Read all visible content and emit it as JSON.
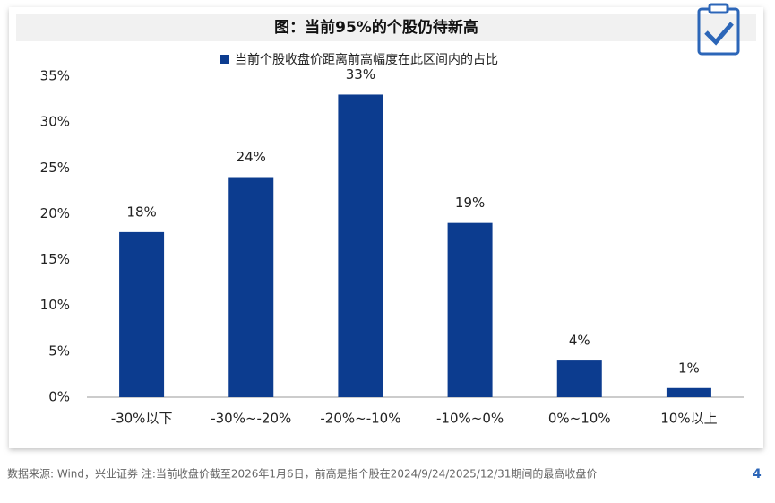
{
  "chart_data": {
    "type": "bar",
    "title": "图：当前95%的个股仍待新高",
    "categories": [
      "-30%以下",
      "-30%~-20%",
      "-20%~-10%",
      "-10%~0%",
      "0%~10%",
      "10%以上"
    ],
    "series": [
      {
        "name": "当前个股收盘价距离前高幅度在此区间内的占比",
        "color": "#0c3c8f",
        "values": [
          18,
          24,
          33,
          19,
          4,
          1
        ],
        "value_labels": [
          "18%",
          "24%",
          "33%",
          "19%",
          "4%",
          "1%"
        ]
      }
    ],
    "ylim": [
      0,
      35
    ],
    "yticks": [
      {
        "value": 0,
        "label": "0%"
      },
      {
        "value": 5,
        "label": "5%"
      },
      {
        "value": 10,
        "label": "10%"
      },
      {
        "value": 15,
        "label": "15%"
      },
      {
        "value": 20,
        "label": "20%"
      },
      {
        "value": 25,
        "label": "25%"
      },
      {
        "value": 30,
        "label": "30%"
      },
      {
        "value": 35,
        "label": "35%"
      }
    ],
    "grid": false,
    "legend": "top"
  },
  "source_note": "数据来源: Wind，兴业证券 注:当前收盘价截至2026年1月6日，前高是指个股在2024/9/24/2025/12/31期间的最高收盘价",
  "page_number": "4"
}
